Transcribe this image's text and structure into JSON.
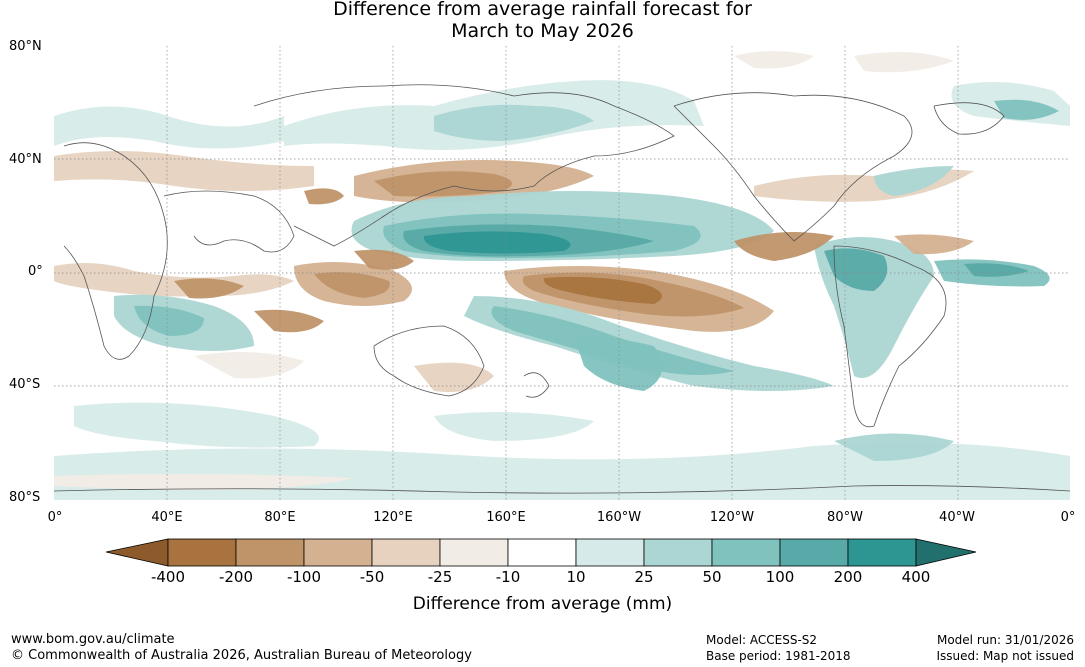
{
  "title": {
    "line1": "Difference from average rainfall forecast for",
    "line2": "March to May 2026"
  },
  "lat_labels": [
    "80°N",
    "40°N",
    "0°",
    "40°S",
    "80°S"
  ],
  "lon_labels": [
    "0°",
    "40°E",
    "80°E",
    "120°E",
    "160°E",
    "160°W",
    "120°W",
    "80°W",
    "40°W",
    "0°"
  ],
  "colorbar": {
    "title": "Difference from average (mm)",
    "labels": [
      "-400",
      "-200",
      "-100",
      "-50",
      "-25",
      "-10",
      "10",
      "25",
      "50",
      "100",
      "200",
      "400"
    ],
    "colors": [
      "#8c5a2b",
      "#a8733e",
      "#bf9468",
      "#d4b190",
      "#e6d2bf",
      "#f2ece6",
      "#ffffff",
      "#d6ebe9",
      "#abd6d3",
      "#80c2be",
      "#57aaa7",
      "#2e9692",
      "#21706d"
    ]
  },
  "footer": {
    "website": "www.bom.gov.au/climate",
    "copyright": "© Commonwealth of Australia 2026, Australian Bureau of Meteorology",
    "model": "Model: ACCESS-S2",
    "base_period": "Base period: 1981-2018",
    "model_run": "Model run: 31/01/2026",
    "issued": "Issued: Map not issued"
  }
}
